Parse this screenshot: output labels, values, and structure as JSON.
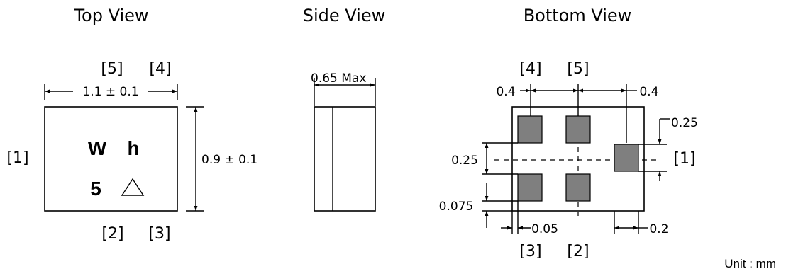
{
  "top_view": {
    "title": "Top View",
    "pin_top": [
      "[5]",
      "[4]"
    ],
    "pin_left": "[1]",
    "pin_bottom": [
      "[2]",
      "[3]"
    ],
    "width_dim": "1.1 ± 0.1",
    "height_dim": "0.9 ± 0.1",
    "marking_line1": [
      "W",
      "h"
    ],
    "marking_line2": [
      "5",
      "△"
    ]
  },
  "side_view": {
    "title": "Side View",
    "height_dim": "0.65 Max"
  },
  "bottom_view": {
    "title": "Bottom View",
    "pin_top": [
      "[4]",
      "[5]"
    ],
    "pin_right": "[1]",
    "pin_bottom": [
      "[3]",
      "[2]"
    ],
    "dim_top_left": "0.4",
    "dim_top_right": "0.4",
    "dim_right_pad_top": "0.25",
    "dim_left_pitch": "0.25",
    "dim_left_edge": "0.075",
    "dim_bottom_gap": "0.05",
    "dim_bottom_right": "0.2"
  },
  "unit_label": "Unit : mm",
  "colors": {
    "pad_fill": "#7f7f7f",
    "line": "#000000"
  }
}
